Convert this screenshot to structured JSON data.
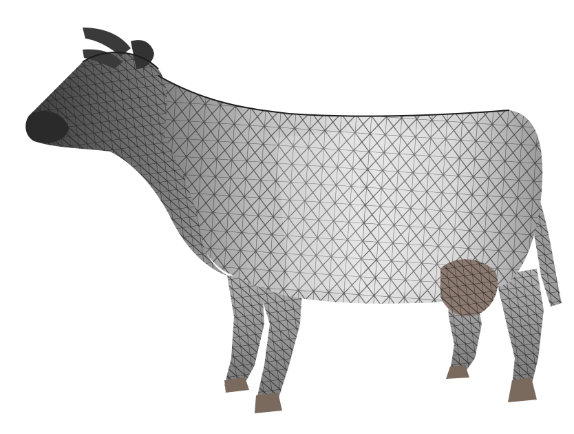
{
  "figure": {
    "subject_icon": "wireframe-cow",
    "colors": {
      "background": "#ffffff",
      "wire": "#2b2b2b",
      "body_light": "#e6e6e6",
      "body_mid": "#c2c2c2",
      "body_dark": "#8f8f8f",
      "hoof": "#7a6a5e",
      "udder": "#8c7a70"
    }
  }
}
